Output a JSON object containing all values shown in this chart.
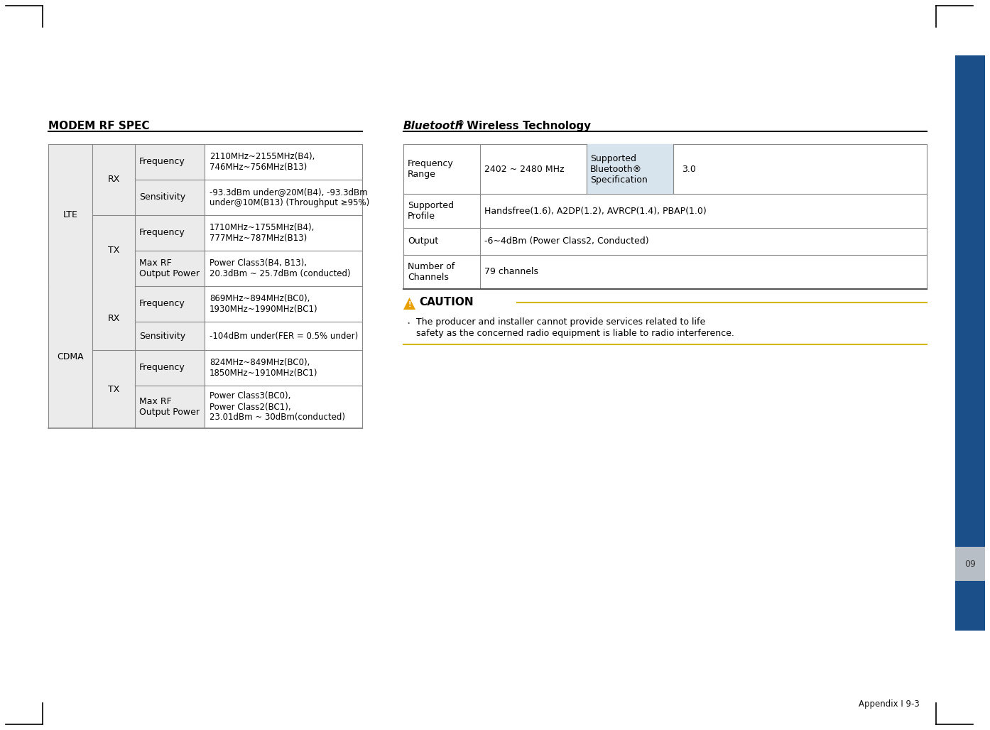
{
  "page_bg": "#ffffff",
  "sidebar_color": "#1a4f8a",
  "sidebar_tab_color": "#b8bec5",
  "sidebar_tab_text": "09",
  "page_num_text": "Appendix I 9-3",
  "title_left": "MODEM RF SPEC",
  "caution_title": "CAUTION",
  "caution_text_line1": "The producer and installer cannot provide services related to life",
  "caution_text_line2": "safety as the concerned radio equipment is liable to radio interference.",
  "text_color": "#111111",
  "line_color": "#aaaaaa",
  "table_line_color": "#888888",
  "lte_rows": [
    {
      "group": "RX",
      "label": "Frequency",
      "value": "2110MHz~2155MHz(B4),\n746MHz~756MHz(B13)",
      "rh": 50
    },
    {
      "group": "RX",
      "label": "Sensitivity",
      "value": "-93.3dBm under@20M(B4), -93.3dBm\nunder@10M(B13) (Throughput ≥95%)",
      "rh": 50
    },
    {
      "group": "TX",
      "label": "Frequency",
      "value": "1710MHz~1755MHz(B4),\n777MHz~787MHz(B13)",
      "rh": 50
    },
    {
      "group": "TX",
      "label": "Max RF\nOutput Power",
      "value": "Power Class3(B4, B13),\n20.3dBm ~ 25.7dBm (conducted)",
      "rh": 50
    }
  ],
  "cdma_rows": [
    {
      "group": "RX",
      "label": "Frequency",
      "value": "869MHz~894MHz(BC0),\n1930MHz~1990MHz(BC1)",
      "rh": 50
    },
    {
      "group": "RX",
      "label": "Sensitivity",
      "value": "-104dBm under(FER = 0.5% under)",
      "rh": 40
    },
    {
      "group": "TX",
      "label": "Frequency",
      "value": "824MHz~849MHz(BC0),\n1850MHz~1910MHz(BC1)",
      "rh": 50
    },
    {
      "group": "TX",
      "label": "Max RF\nOutput Power",
      "value": "Power Class3(BC0),\nPower Class2(BC1),\n23.01dBm ~ 30dBm(conducted)",
      "rh": 60
    }
  ],
  "bt_rows": [
    {
      "label": "Frequency\nRange",
      "value": "2402 ~ 2480 MHz",
      "label2": "Supported\nBluetooth®\nSpecification",
      "value2": "3.0",
      "rh": 70
    },
    {
      "label": "Supported\nProfile",
      "value": "Handsfree(1.6), A2DP(1.2), AVRCP(1.4), PBAP(1.0)",
      "label2": null,
      "value2": null,
      "rh": 48
    },
    {
      "label": "Output",
      "value": "-6~4dBm (Power Class2, Conducted)",
      "label2": null,
      "value2": null,
      "rh": 38
    },
    {
      "label": "Number of\nChannels",
      "value": "79 channels",
      "label2": null,
      "value2": null,
      "rh": 48
    }
  ],
  "cell_bg_color": "#d8e4ed",
  "table_row_bg": "#ebebeb",
  "caution_line_color": "#d4aa00",
  "caution_bullet_color": "#555555",
  "fs": 9.0,
  "fs_title": 11.0,
  "fs_page": 8.5
}
